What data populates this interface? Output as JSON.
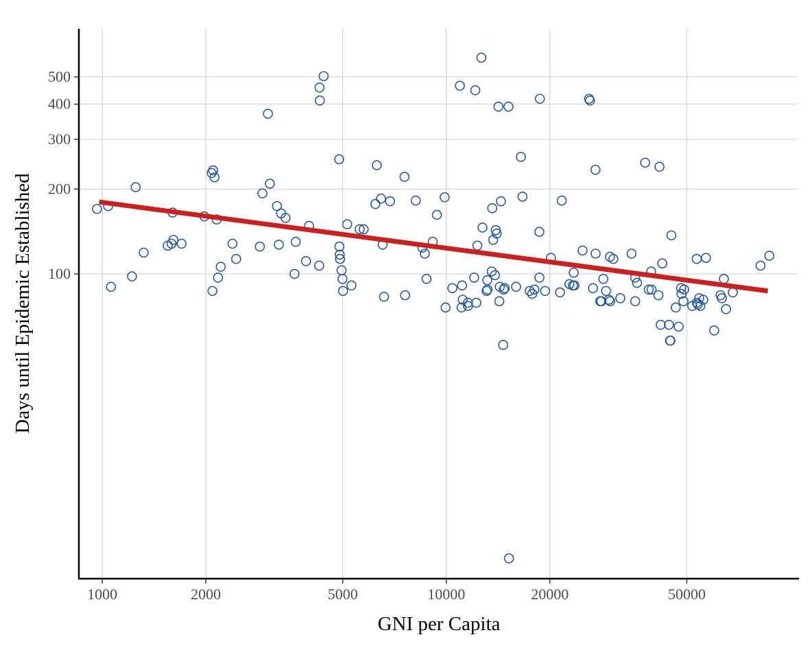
{
  "chart_data": {
    "type": "scatter",
    "title": "",
    "xlabel": "GNI per Capita",
    "ylabel": "Days until Epidemic Established",
    "xscale": "log",
    "yscale": "log",
    "xlim": [
      855,
      105000
    ],
    "ylim": [
      8.3,
      740
    ],
    "x_ticks": [
      1000,
      2000,
      5000,
      10000,
      20000,
      50000
    ],
    "x_tick_labels": [
      "1000",
      "2000",
      "5000",
      "10000",
      "20000",
      "50000"
    ],
    "y_ticks": [
      100,
      200,
      300,
      400,
      500
    ],
    "y_tick_labels": [
      "100",
      "200",
      "300",
      "400",
      "500"
    ],
    "grid": true,
    "colors": {
      "points": "#2a5a9e",
      "fit_line": "#cc1f1f",
      "grid": "#cccccc",
      "axis": "#000000"
    },
    "fit_line": {
      "x": [
        980,
        86000
      ],
      "y": [
        180,
        87
      ]
    },
    "points": [
      [
        965,
        170
      ],
      [
        1040,
        174
      ],
      [
        1060,
        90
      ],
      [
        1220,
        98
      ],
      [
        1250,
        203
      ],
      [
        1320,
        119
      ],
      [
        1550,
        126
      ],
      [
        1590,
        128
      ],
      [
        1600,
        165
      ],
      [
        1610,
        132
      ],
      [
        1700,
        128
      ],
      [
        1980,
        160
      ],
      [
        2080,
        228
      ],
      [
        2090,
        87
      ],
      [
        2100,
        233
      ],
      [
        2120,
        220
      ],
      [
        2150,
        156
      ],
      [
        2170,
        97
      ],
      [
        2210,
        106
      ],
      [
        2390,
        128
      ],
      [
        2450,
        113
      ],
      [
        2870,
        125
      ],
      [
        2920,
        193
      ],
      [
        3030,
        370
      ],
      [
        3070,
        209
      ],
      [
        3220,
        174
      ],
      [
        3260,
        127
      ],
      [
        3310,
        164
      ],
      [
        3410,
        158
      ],
      [
        3620,
        100
      ],
      [
        3650,
        130
      ],
      [
        3910,
        111
      ],
      [
        3990,
        148
      ],
      [
        4270,
        107
      ],
      [
        4280,
        458
      ],
      [
        4290,
        412
      ],
      [
        4400,
        503
      ],
      [
        4880,
        255
      ],
      [
        4890,
        125
      ],
      [
        4900,
        117
      ],
      [
        4910,
        113
      ],
      [
        4960,
        103
      ],
      [
        4990,
        96
      ],
      [
        5010,
        87
      ],
      [
        5150,
        150
      ],
      [
        5300,
        91
      ],
      [
        5600,
        144
      ],
      [
        5750,
        144
      ],
      [
        6220,
        177
      ],
      [
        6280,
        243
      ],
      [
        6460,
        185
      ],
      [
        6530,
        127
      ],
      [
        6590,
        83
      ],
      [
        6860,
        181
      ],
      [
        7560,
        221
      ],
      [
        7590,
        84
      ],
      [
        8150,
        182
      ],
      [
        8520,
        124
      ],
      [
        8660,
        118
      ],
      [
        8760,
        96
      ],
      [
        9130,
        130
      ],
      [
        9390,
        162
      ],
      [
        9890,
        187
      ],
      [
        9950,
        76
      ],
      [
        10410,
        89
      ],
      [
        10950,
        465
      ],
      [
        11070,
        76
      ],
      [
        11110,
        91
      ],
      [
        11160,
        81
      ],
      [
        11550,
        79
      ],
      [
        11560,
        77
      ],
      [
        12050,
        97
      ],
      [
        12140,
        448
      ],
      [
        12220,
        79
      ],
      [
        12310,
        126
      ],
      [
        12640,
        585
      ],
      [
        12740,
        146
      ],
      [
        13100,
        87
      ],
      [
        13150,
        95
      ],
      [
        13170,
        88
      ],
      [
        13550,
        102
      ],
      [
        13600,
        171
      ],
      [
        13680,
        132
      ],
      [
        13850,
        99
      ],
      [
        13920,
        143
      ],
      [
        14010,
        139
      ],
      [
        14170,
        392
      ],
      [
        14260,
        80
      ],
      [
        14300,
        90
      ],
      [
        14410,
        181
      ],
      [
        14630,
        56
      ],
      [
        14680,
        88
      ],
      [
        14780,
        89
      ],
      [
        15160,
        392
      ],
      [
        15210,
        9.8
      ],
      [
        15950,
        90
      ],
      [
        16470,
        260
      ],
      [
        16650,
        188
      ],
      [
        17470,
        87
      ],
      [
        17770,
        85
      ],
      [
        18030,
        88
      ],
      [
        18640,
        141
      ],
      [
        18650,
        97
      ],
      [
        18700,
        418
      ],
      [
        19370,
        87
      ],
      [
        20140,
        114
      ],
      [
        21400,
        86
      ],
      [
        21650,
        182
      ],
      [
        22800,
        92
      ],
      [
        23330,
        91
      ],
      [
        23460,
        101
      ],
      [
        23570,
        91
      ],
      [
        24890,
        121
      ],
      [
        25990,
        418
      ],
      [
        26150,
        412
      ],
      [
        26690,
        89
      ],
      [
        27130,
        234
      ],
      [
        27160,
        118
      ],
      [
        28010,
        80
      ],
      [
        28220,
        80
      ],
      [
        28600,
        96
      ],
      [
        29120,
        87
      ],
      [
        29720,
        81
      ],
      [
        29900,
        115
      ],
      [
        29930,
        80
      ],
      [
        30580,
        113
      ],
      [
        32050,
        82
      ],
      [
        34550,
        118
      ],
      [
        35390,
        97
      ],
      [
        35400,
        80
      ],
      [
        35850,
        93
      ],
      [
        37830,
        248
      ],
      [
        38760,
        88
      ],
      [
        39400,
        102
      ],
      [
        39490,
        88
      ],
      [
        41360,
        84
      ],
      [
        41640,
        240
      ],
      [
        41990,
        66
      ],
      [
        42420,
        109
      ],
      [
        44360,
        66
      ],
      [
        44680,
        58
      ],
      [
        44810,
        58
      ],
      [
        45100,
        137
      ],
      [
        46440,
        76
      ],
      [
        47350,
        65
      ],
      [
        48140,
        89
      ],
      [
        48260,
        85
      ],
      [
        48890,
        80
      ],
      [
        49120,
        88
      ],
      [
        51860,
        77
      ],
      [
        53430,
        113
      ],
      [
        53490,
        79
      ],
      [
        53810,
        78
      ],
      [
        54330,
        82
      ],
      [
        54740,
        77
      ],
      [
        55850,
        81
      ],
      [
        56840,
        114
      ],
      [
        60080,
        63
      ],
      [
        62680,
        84
      ],
      [
        63240,
        82
      ],
      [
        64090,
        96
      ],
      [
        65010,
        75
      ],
      [
        68040,
        86
      ],
      [
        81890,
        107
      ],
      [
        86870,
        116
      ]
    ]
  }
}
